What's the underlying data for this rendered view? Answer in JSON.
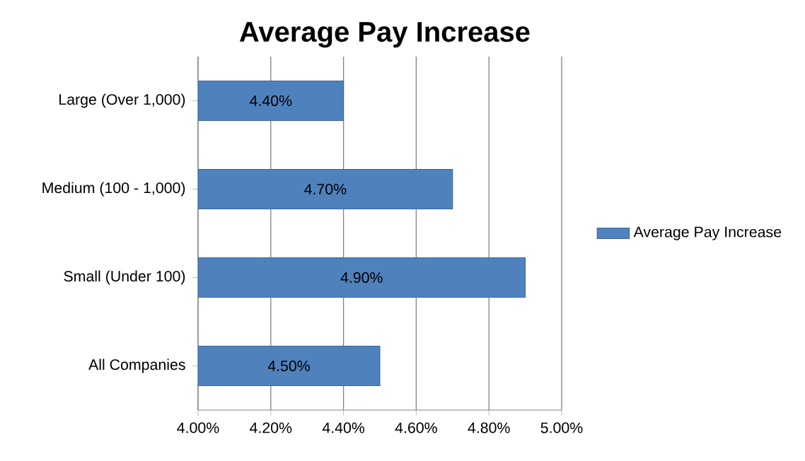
{
  "chart_data": {
    "type": "bar",
    "orientation": "horizontal",
    "title": "Average Pay Increase",
    "categories": [
      "Large (Over 1,000)",
      "Medium (100 - 1,000)",
      "Small (Under 100)",
      "All Companies"
    ],
    "series": [
      {
        "name": "Average Pay Increase",
        "color": "#4f81bd",
        "values": [
          4.4,
          4.7,
          4.9,
          4.5
        ],
        "value_labels": [
          "4.40%",
          "4.70%",
          "4.90%",
          "4.50%"
        ]
      }
    ],
    "xlim": [
      4.0,
      5.0
    ],
    "xticks": [
      {
        "value": 4.0,
        "label": "4.00%"
      },
      {
        "value": 4.2,
        "label": "4.20%"
      },
      {
        "value": 4.4,
        "label": "4.40%"
      },
      {
        "value": 4.6,
        "label": "4.60%"
      },
      {
        "value": 4.8,
        "label": "4.80%"
      },
      {
        "value": 5.0,
        "label": "5.00%"
      }
    ],
    "grid": "x",
    "legend": "right"
  }
}
